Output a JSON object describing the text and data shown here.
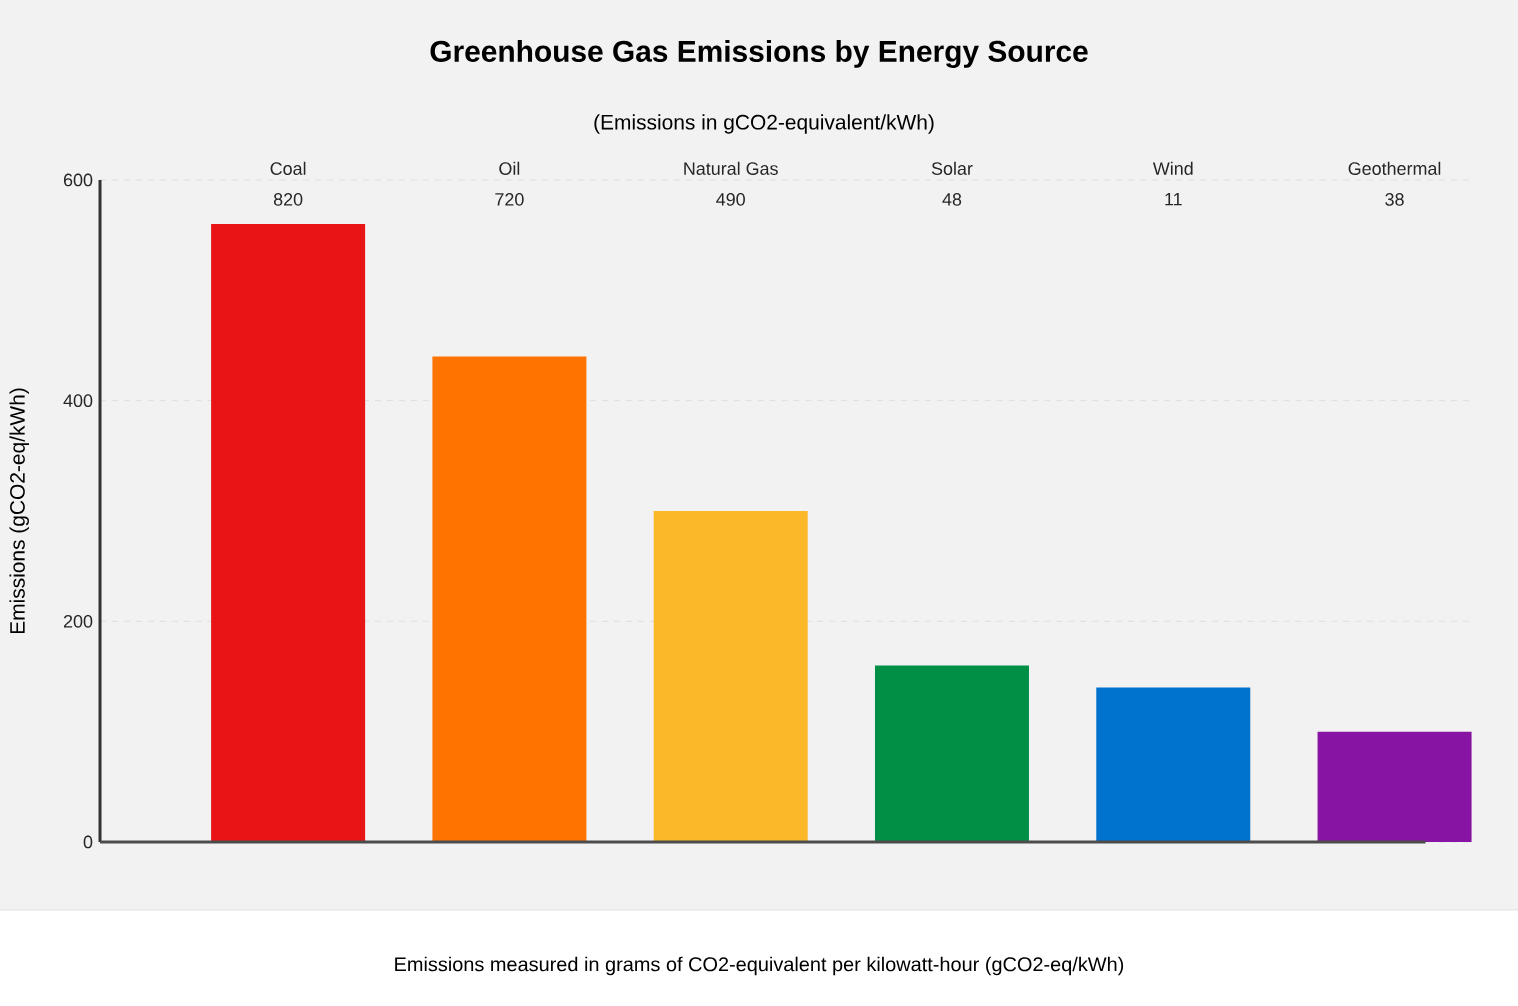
{
  "chart_data": {
    "type": "bar",
    "title": "Greenhouse Gas Emissions by Energy Source",
    "subtitle": "(Emissions in gCO2-equivalent/kWh)",
    "ylabel": "Emissions (gCO2-eq/kWh)",
    "categories": [
      "Coal",
      "Oil",
      "Natural Gas",
      "Solar",
      "Wind",
      "Geothermal"
    ],
    "values": [
      560,
      440,
      300,
      160,
      140,
      100
    ],
    "colors": [
      "#e81416",
      "#ff7300",
      "#fbb829",
      "#008f45",
      "#0073cf",
      "#8714a3"
    ],
    "ylim": [
      0,
      600
    ],
    "yticks": [
      0,
      200,
      400,
      600
    ],
    "grid": "y",
    "annotations": [
      "820",
      "720",
      "490",
      "48",
      "11",
      "38",
      "Emissions measured in grams of CO2-equivalent per kilowatt-hour (gCO2-eq/kWh)"
    ]
  }
}
